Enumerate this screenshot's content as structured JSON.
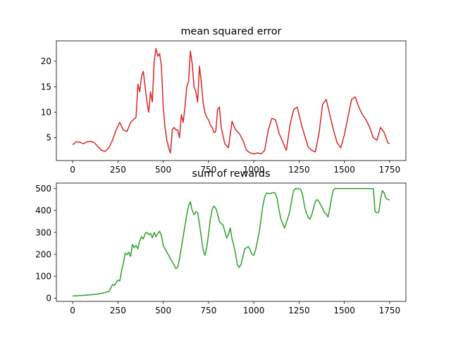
{
  "chart_data": [
    {
      "type": "line",
      "title": "mean squared error",
      "xlabel": "",
      "ylabel": "",
      "xlim": [
        -90,
        1840
      ],
      "ylim": [
        0.5,
        24
      ],
      "xticks": [
        0,
        250,
        500,
        750,
        1000,
        1250,
        1500,
        1750
      ],
      "yticks": [
        5,
        10,
        15,
        20
      ],
      "grid": false,
      "series": [
        {
          "color": "#d62728",
          "x": [
            0,
            20,
            40,
            60,
            80,
            100,
            120,
            140,
            160,
            180,
            200,
            220,
            240,
            260,
            280,
            300,
            320,
            340,
            350,
            360,
            370,
            380,
            390,
            400,
            410,
            420,
            430,
            440,
            450,
            460,
            470,
            480,
            490,
            500,
            510,
            520,
            530,
            540,
            550,
            560,
            570,
            580,
            590,
            600,
            610,
            620,
            630,
            640,
            650,
            660,
            670,
            680,
            690,
            700,
            710,
            720,
            730,
            740,
            750,
            760,
            770,
            780,
            790,
            800,
            810,
            820,
            840,
            860,
            880,
            900,
            920,
            940,
            960,
            980,
            1000,
            1020,
            1040,
            1060,
            1080,
            1100,
            1120,
            1140,
            1160,
            1180,
            1200,
            1220,
            1240,
            1260,
            1280,
            1300,
            1320,
            1340,
            1360,
            1380,
            1400,
            1420,
            1440,
            1460,
            1480,
            1500,
            1520,
            1540,
            1560,
            1580,
            1600,
            1620,
            1640,
            1660,
            1680,
            1700,
            1720,
            1740,
            1750
          ],
          "y": [
            3.6,
            4.2,
            4.1,
            3.8,
            4.2,
            4.3,
            4.0,
            3.2,
            2.5,
            2.3,
            3.0,
            4.5,
            6.5,
            8.0,
            6.5,
            6.2,
            8.0,
            8.7,
            9.0,
            15.5,
            14.0,
            17.0,
            18.0,
            15.0,
            12.0,
            10.0,
            14.0,
            12.0,
            20.0,
            22.5,
            21.0,
            21.5,
            19.0,
            11.0,
            7.0,
            4.5,
            3.0,
            2.0,
            6.5,
            7.0,
            6.5,
            6.5,
            5.0,
            9.5,
            8.0,
            11.0,
            15.0,
            16.0,
            22.0,
            19.5,
            15.0,
            14.0,
            12.0,
            19.0,
            16.0,
            12.0,
            10.0,
            9.0,
            8.5,
            7.5,
            7.0,
            6.0,
            6.2,
            10.5,
            11.0,
            7.0,
            3.8,
            3.0,
            8.2,
            6.5,
            5.8,
            4.5,
            2.5,
            2.0,
            1.8,
            2.0,
            1.8,
            2.5,
            6.5,
            8.8,
            8.5,
            5.8,
            4.2,
            2.5,
            7.5,
            10.5,
            11.0,
            8.0,
            5.5,
            3.2,
            2.5,
            2.2,
            5.8,
            11.5,
            12.5,
            9.5,
            6.5,
            4.0,
            3.0,
            5.5,
            9.0,
            12.5,
            13.0,
            11.0,
            9.5,
            8.5,
            7.0,
            5.0,
            4.5,
            7.0,
            6.0,
            4.0,
            3.8
          ]
        }
      ]
    },
    {
      "type": "line",
      "title": "sum of rewards",
      "xlabel": "",
      "ylabel": "",
      "xlim": [
        -90,
        1840
      ],
      "ylim": [
        -15,
        525
      ],
      "xticks": [
        0,
        250,
        500,
        750,
        1000,
        1250,
        1500,
        1750
      ],
      "yticks": [
        0,
        100,
        200,
        300,
        400,
        500
      ],
      "grid": false,
      "series": [
        {
          "color": "#2ca02c",
          "x": [
            0,
            50,
            100,
            150,
            175,
            200,
            210,
            220,
            230,
            240,
            250,
            260,
            270,
            280,
            290,
            300,
            310,
            320,
            330,
            340,
            350,
            360,
            370,
            380,
            390,
            400,
            410,
            420,
            430,
            440,
            450,
            460,
            470,
            480,
            490,
            500,
            510,
            520,
            530,
            540,
            550,
            560,
            570,
            580,
            590,
            600,
            610,
            620,
            630,
            640,
            650,
            660,
            670,
            680,
            690,
            700,
            710,
            720,
            730,
            740,
            750,
            760,
            770,
            780,
            790,
            800,
            810,
            820,
            830,
            840,
            850,
            860,
            870,
            880,
            890,
            900,
            910,
            920,
            930,
            940,
            950,
            960,
            970,
            980,
            990,
            1000,
            1010,
            1020,
            1030,
            1040,
            1050,
            1060,
            1070,
            1080,
            1090,
            1100,
            1110,
            1120,
            1130,
            1140,
            1150,
            1160,
            1170,
            1180,
            1190,
            1200,
            1210,
            1220,
            1230,
            1240,
            1250,
            1260,
            1270,
            1280,
            1290,
            1300,
            1310,
            1320,
            1330,
            1340,
            1350,
            1360,
            1370,
            1380,
            1390,
            1400,
            1410,
            1420,
            1430,
            1440,
            1450,
            1460,
            1470,
            1480,
            1490,
            1500,
            1510,
            1520,
            1530,
            1540,
            1550,
            1560,
            1570,
            1580,
            1590,
            1600,
            1610,
            1620,
            1630,
            1640,
            1650,
            1660,
            1670,
            1680,
            1690,
            1700,
            1710,
            1720,
            1730,
            1740,
            1750
          ],
          "y": [
            10,
            12,
            15,
            20,
            25,
            30,
            45,
            62,
            58,
            70,
            82,
            78,
            125,
            160,
            205,
            198,
            210,
            190,
            245,
            230,
            240,
            225,
            260,
            280,
            270,
            295,
            300,
            290,
            295,
            275,
            300,
            280,
            295,
            305,
            285,
            240,
            225,
            210,
            195,
            178,
            165,
            150,
            135,
            140,
            180,
            230,
            280,
            330,
            380,
            420,
            440,
            400,
            380,
            395,
            390,
            340,
            280,
            220,
            195,
            230,
            290,
            360,
            405,
            420,
            410,
            385,
            350,
            340,
            335,
            305,
            275,
            290,
            320,
            270,
            240,
            200,
            150,
            140,
            155,
            190,
            225,
            230,
            235,
            220,
            200,
            195,
            220,
            260,
            300,
            360,
            420,
            460,
            480,
            478,
            477,
            480,
            482,
            478,
            450,
            400,
            360,
            340,
            320,
            345,
            370,
            400,
            450,
            490,
            500,
            498,
            500,
            495,
            470,
            420,
            390,
            370,
            360,
            380,
            410,
            440,
            450,
            440,
            425,
            410,
            390,
            385,
            370,
            410,
            460,
            495,
            500,
            500,
            500,
            500,
            500,
            500,
            500,
            500,
            500,
            500,
            500,
            500,
            500,
            500,
            500,
            500,
            500,
            500,
            500,
            500,
            500,
            500,
            395,
            390,
            392,
            450,
            490,
            480,
            455,
            450,
            448
          ]
        }
      ]
    }
  ]
}
